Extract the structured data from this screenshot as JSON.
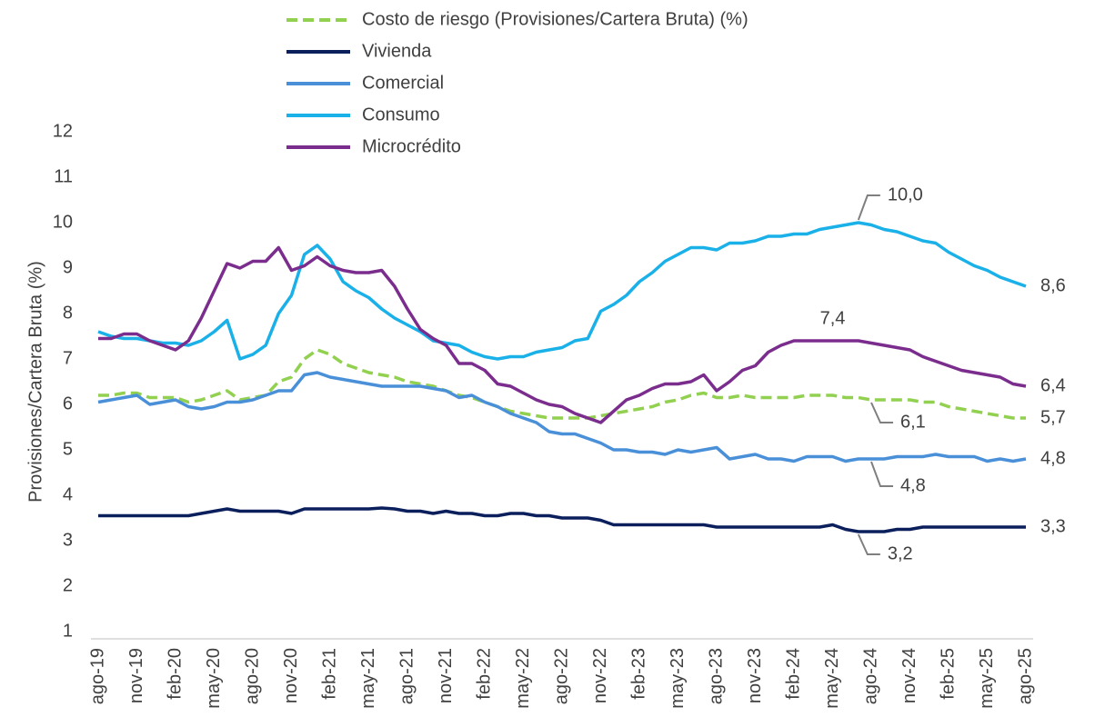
{
  "chart_data": {
    "type": "line",
    "y_label": "Provisiones/Cartera Bruta (%)",
    "ylim": [
      1,
      12
    ],
    "yticks": [
      1,
      2,
      3,
      4,
      5,
      6,
      7,
      8,
      9,
      10,
      11,
      12
    ],
    "grid": false,
    "legend": "top",
    "categories": [
      "ago-19",
      null,
      null,
      "nov-19",
      null,
      null,
      "feb-20",
      null,
      null,
      "may-20",
      null,
      null,
      "ago-20",
      null,
      null,
      "nov-20",
      null,
      null,
      "feb-21",
      null,
      null,
      "may-21",
      null,
      null,
      "ago-21",
      null,
      null,
      "nov-21",
      null,
      null,
      "feb-22",
      null,
      null,
      "may-22",
      null,
      null,
      "ago-22",
      null,
      null,
      "nov-22",
      null,
      null,
      "feb-23",
      null,
      null,
      "may-23",
      null,
      null,
      "ago-23",
      null,
      null,
      "nov-23",
      null,
      null,
      "feb-24",
      null,
      null,
      "may-24",
      null,
      null,
      "ago-24",
      null,
      null,
      "nov-24",
      null,
      null,
      "feb-25",
      null,
      null,
      "may-25",
      null,
      null,
      "ago-25"
    ],
    "series": [
      {
        "name": "Costo de riesgo (Provisiones/Cartera Bruta) (%)",
        "color": "#92d050",
        "dash": true,
        "values": [
          6.2,
          6.2,
          6.25,
          6.25,
          6.15,
          6.15,
          6.15,
          6.05,
          6.1,
          6.2,
          6.3,
          6.1,
          6.15,
          6.2,
          6.5,
          6.6,
          7.0,
          7.2,
          7.1,
          6.9,
          6.8,
          6.7,
          6.65,
          6.6,
          6.5,
          6.45,
          6.4,
          6.3,
          6.2,
          6.15,
          6.05,
          5.95,
          5.85,
          5.8,
          5.75,
          5.7,
          5.7,
          5.7,
          5.7,
          5.75,
          5.8,
          5.85,
          5.9,
          5.95,
          6.05,
          6.1,
          6.2,
          6.25,
          6.15,
          6.15,
          6.2,
          6.15,
          6.15,
          6.15,
          6.15,
          6.2,
          6.2,
          6.2,
          6.15,
          6.15,
          6.1,
          6.1,
          6.1,
          6.1,
          6.05,
          6.05,
          5.95,
          5.9,
          5.85,
          5.8,
          5.75,
          5.7,
          5.7
        ],
        "value_labels": [
          null,
          null,
          null,
          null,
          null,
          null,
          null,
          null,
          null,
          null,
          null,
          null,
          null,
          null,
          null,
          null,
          null,
          null,
          null,
          null,
          null,
          null,
          null,
          null,
          null,
          null,
          null,
          null,
          null,
          null,
          null,
          null,
          null,
          null,
          null,
          null,
          null,
          null,
          null,
          null,
          null,
          null,
          null,
          null,
          null,
          null,
          null,
          null,
          null,
          null,
          null,
          null,
          null,
          null,
          null,
          null,
          null,
          null,
          null,
          null,
          "6,1",
          null,
          null,
          null,
          null,
          null,
          null,
          null,
          null,
          null,
          null,
          null,
          "5,7"
        ]
      },
      {
        "name": "Vivienda",
        "color": "#0a1f5c",
        "values": [
          3.55,
          3.55,
          3.55,
          3.55,
          3.55,
          3.55,
          3.55,
          3.55,
          3.6,
          3.65,
          3.7,
          3.65,
          3.65,
          3.65,
          3.65,
          3.6,
          3.7,
          3.7,
          3.7,
          3.7,
          3.7,
          3.7,
          3.72,
          3.7,
          3.65,
          3.65,
          3.6,
          3.65,
          3.6,
          3.6,
          3.55,
          3.55,
          3.6,
          3.6,
          3.55,
          3.55,
          3.5,
          3.5,
          3.5,
          3.45,
          3.35,
          3.35,
          3.35,
          3.35,
          3.35,
          3.35,
          3.35,
          3.35,
          3.3,
          3.3,
          3.3,
          3.3,
          3.3,
          3.3,
          3.3,
          3.3,
          3.3,
          3.35,
          3.25,
          3.2,
          3.2,
          3.2,
          3.25,
          3.25,
          3.3,
          3.3,
          3.3,
          3.3,
          3.3,
          3.3,
          3.3,
          3.3,
          3.3
        ],
        "value_labels": [
          null,
          null,
          null,
          null,
          null,
          null,
          null,
          null,
          null,
          null,
          null,
          null,
          null,
          null,
          null,
          null,
          null,
          null,
          null,
          null,
          null,
          null,
          null,
          null,
          null,
          null,
          null,
          null,
          null,
          null,
          null,
          null,
          null,
          null,
          null,
          null,
          null,
          null,
          null,
          null,
          null,
          null,
          null,
          null,
          null,
          null,
          null,
          null,
          null,
          null,
          null,
          null,
          null,
          null,
          null,
          null,
          null,
          null,
          null,
          "3,2",
          null,
          null,
          null,
          null,
          null,
          null,
          null,
          null,
          null,
          null,
          null,
          null,
          "3,3"
        ]
      },
      {
        "name": "Comercial",
        "color": "#4a90d9",
        "values": [
          6.05,
          6.1,
          6.15,
          6.2,
          6.0,
          6.05,
          6.1,
          5.95,
          5.9,
          5.95,
          6.05,
          6.05,
          6.1,
          6.2,
          6.3,
          6.3,
          6.65,
          6.7,
          6.6,
          6.55,
          6.5,
          6.45,
          6.4,
          6.4,
          6.4,
          6.4,
          6.35,
          6.3,
          6.15,
          6.2,
          6.05,
          5.95,
          5.8,
          5.7,
          5.6,
          5.4,
          5.35,
          5.35,
          5.25,
          5.15,
          5.0,
          5.0,
          4.95,
          4.95,
          4.9,
          5.0,
          4.95,
          5.0,
          5.05,
          4.8,
          4.85,
          4.9,
          4.8,
          4.8,
          4.75,
          4.85,
          4.85,
          4.85,
          4.75,
          4.8,
          4.8,
          4.8,
          4.85,
          4.85,
          4.85,
          4.9,
          4.85,
          4.85,
          4.85,
          4.75,
          4.8,
          4.75,
          4.8
        ],
        "value_labels": [
          null,
          null,
          null,
          null,
          null,
          null,
          null,
          null,
          null,
          null,
          null,
          null,
          null,
          null,
          null,
          null,
          null,
          null,
          null,
          null,
          null,
          null,
          null,
          null,
          null,
          null,
          null,
          null,
          null,
          null,
          null,
          null,
          null,
          null,
          null,
          null,
          null,
          null,
          null,
          null,
          null,
          null,
          null,
          null,
          null,
          null,
          null,
          null,
          null,
          null,
          null,
          null,
          null,
          null,
          null,
          null,
          null,
          null,
          null,
          null,
          "4,8",
          null,
          null,
          null,
          null,
          null,
          null,
          null,
          null,
          null,
          null,
          null,
          "4,8"
        ]
      },
      {
        "name": "Consumo",
        "color": "#1ab0e8",
        "values": [
          7.6,
          7.5,
          7.45,
          7.45,
          7.4,
          7.35,
          7.35,
          7.3,
          7.4,
          7.6,
          7.85,
          7.0,
          7.1,
          7.3,
          8.0,
          8.4,
          9.3,
          9.5,
          9.2,
          8.7,
          8.5,
          8.35,
          8.1,
          7.9,
          7.75,
          7.6,
          7.4,
          7.35,
          7.3,
          7.15,
          7.05,
          7.0,
          7.05,
          7.05,
          7.15,
          7.2,
          7.25,
          7.4,
          7.45,
          8.05,
          8.2,
          8.4,
          8.7,
          8.9,
          9.15,
          9.3,
          9.45,
          9.45,
          9.4,
          9.55,
          9.55,
          9.6,
          9.7,
          9.7,
          9.75,
          9.75,
          9.85,
          9.9,
          9.95,
          10.0,
          9.95,
          9.85,
          9.8,
          9.7,
          9.6,
          9.55,
          9.35,
          9.2,
          9.05,
          8.95,
          8.8,
          8.7,
          8.6
        ],
        "value_labels": [
          null,
          null,
          null,
          null,
          null,
          null,
          null,
          null,
          null,
          null,
          null,
          null,
          null,
          null,
          null,
          null,
          null,
          null,
          null,
          null,
          null,
          null,
          null,
          null,
          null,
          null,
          null,
          null,
          null,
          null,
          null,
          null,
          null,
          null,
          null,
          null,
          null,
          null,
          null,
          null,
          null,
          null,
          null,
          null,
          null,
          null,
          null,
          null,
          null,
          null,
          null,
          null,
          null,
          null,
          null,
          null,
          null,
          null,
          null,
          "10,0",
          null,
          null,
          null,
          null,
          null,
          null,
          null,
          null,
          null,
          null,
          null,
          null,
          "8,6"
        ]
      },
      {
        "name": "Microcrédito",
        "color": "#7b2d8e",
        "values": [
          7.45,
          7.45,
          7.55,
          7.55,
          7.4,
          7.3,
          7.2,
          7.4,
          7.9,
          8.5,
          9.1,
          9.0,
          9.15,
          9.15,
          9.45,
          8.95,
          9.05,
          9.25,
          9.05,
          8.95,
          8.9,
          8.9,
          8.95,
          8.6,
          8.1,
          7.65,
          7.45,
          7.3,
          6.9,
          6.9,
          6.75,
          6.45,
          6.4,
          6.25,
          6.1,
          6.0,
          5.95,
          5.8,
          5.7,
          5.6,
          5.85,
          6.1,
          6.2,
          6.35,
          6.45,
          6.45,
          6.5,
          6.65,
          6.3,
          6.5,
          6.75,
          6.85,
          7.15,
          7.3,
          7.4,
          7.4,
          7.4,
          7.4,
          7.4,
          7.4,
          7.35,
          7.3,
          7.25,
          7.2,
          7.05,
          6.95,
          6.85,
          6.75,
          6.7,
          6.65,
          6.6,
          6.45,
          6.4
        ],
        "value_labels": [
          null,
          null,
          null,
          null,
          null,
          null,
          null,
          null,
          null,
          null,
          null,
          null,
          null,
          null,
          null,
          null,
          null,
          null,
          null,
          null,
          null,
          null,
          null,
          null,
          null,
          null,
          null,
          null,
          null,
          null,
          null,
          null,
          null,
          null,
          null,
          null,
          null,
          null,
          null,
          null,
          null,
          null,
          null,
          null,
          null,
          null,
          null,
          null,
          null,
          null,
          null,
          null,
          null,
          null,
          null,
          null,
          null,
          "7,4",
          null,
          null,
          null,
          null,
          null,
          null,
          null,
          null,
          null,
          null,
          null,
          null,
          null,
          null,
          "6,4"
        ]
      }
    ]
  }
}
